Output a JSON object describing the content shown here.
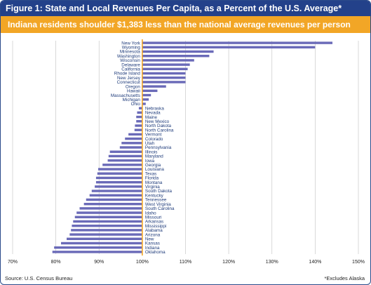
{
  "title": "Figure 1: State and Local Revenues Per Capita, as a Percent of the U.S. Average*",
  "subtitle": "Indiana residents shoulder $1,383 less than the national average revenues per person",
  "source": "Source: U.S. Census Bureau",
  "footnote": "*Excludes Alaska",
  "colors": {
    "title_bg": "#23418a",
    "subtitle_bg": "#f2a626",
    "bar": "#6a6ab8",
    "baseline": "#f2a626",
    "grid": "#c9c9c9"
  },
  "chart_data": {
    "type": "bar",
    "orientation": "horizontal",
    "xlim": [
      70,
      150
    ],
    "xticks": [
      "70%",
      "80%",
      "90%",
      "100%",
      "110%",
      "120%",
      "130%",
      "140%",
      "150%"
    ],
    "xtick_values": [
      70,
      80,
      90,
      100,
      110,
      120,
      130,
      140,
      150
    ],
    "grid": true,
    "categories": [
      "New York",
      "Wyoming",
      "Minnesota",
      "Washington",
      "Wisconsin",
      "Delaware",
      "California",
      "Rhode Island",
      "New Jersey",
      "Connecticut",
      "Oregon",
      "Hawaii",
      "Massachusetts",
      "Michigan",
      "Ohio",
      "Nebraska",
      "Nevada",
      "Maine",
      "New Mexico",
      "North Dakota",
      "North Carolina",
      "Vermont",
      "Colorado",
      "Utah",
      "Pennsylvania",
      "Illinois",
      "Maryland",
      "Iowa",
      "Georgia",
      "Louisiana",
      "Texas",
      "Florida",
      "Montana",
      "Virginia",
      "South Dakota",
      "Kentucky",
      "Tennessee",
      "West Virginia",
      "South Carolina",
      "Idaho",
      "Missouri",
      "Arkansas",
      "Mississippi",
      "Alabama",
      "Arizona",
      "New",
      "Kansas",
      "Indiana",
      "Oklahoma"
    ],
    "values": [
      144,
      140,
      116.5,
      115.5,
      112,
      111,
      110.5,
      110,
      110,
      110,
      105.5,
      103.5,
      102,
      101.5,
      100.8,
      99.2,
      98.8,
      98.6,
      98.6,
      98.3,
      98.2,
      96.8,
      96,
      95.2,
      94.8,
      92.5,
      92.2,
      92,
      90.8,
      89.8,
      89.6,
      89.3,
      89.3,
      89,
      88.3,
      87.8,
      87,
      86.5,
      85.5,
      84.8,
      84.4,
      84,
      83.7,
      83.5,
      83.2,
      82.5,
      81.2,
      79.6,
      79.2
    ]
  }
}
